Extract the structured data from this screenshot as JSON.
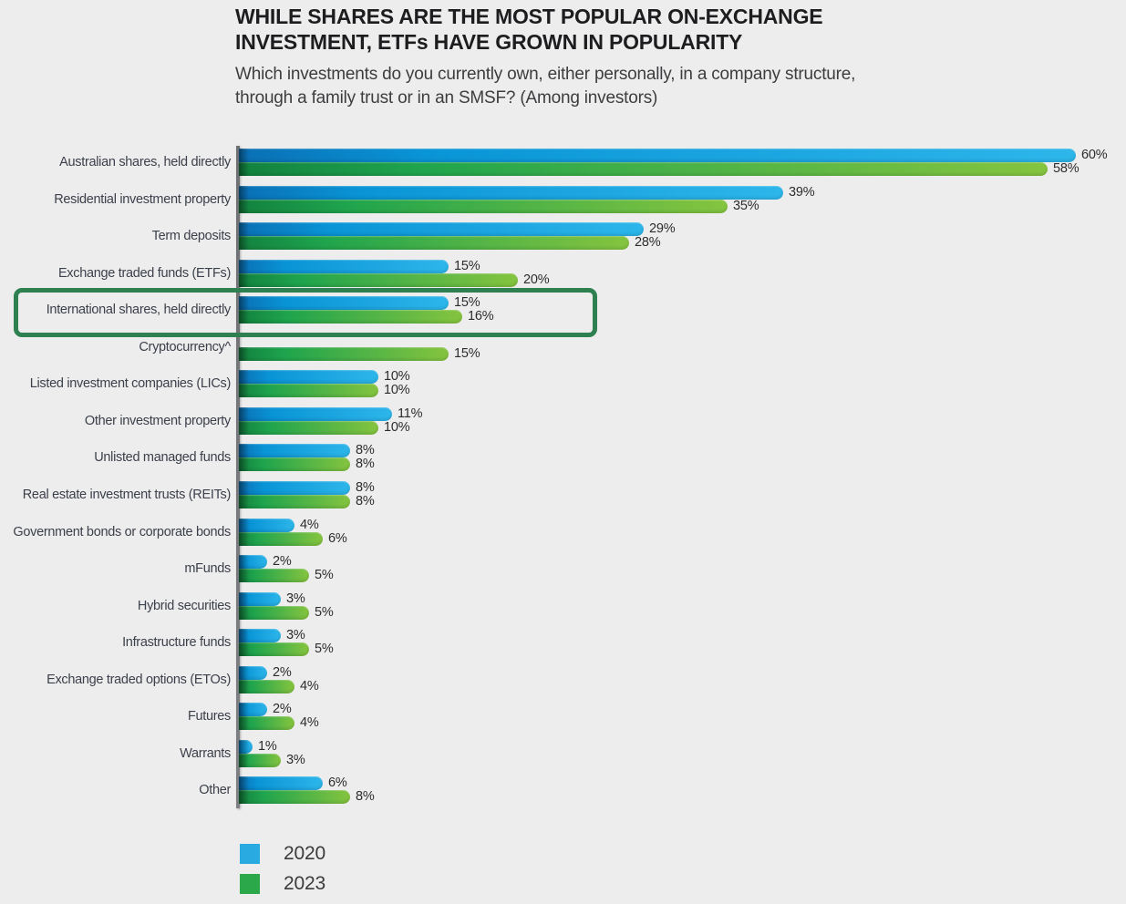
{
  "page": {
    "background": "#EDEDED"
  },
  "header": {
    "title_line1": "WHILE SHARES ARE THE MOST POPULAR ON-EXCHANGE",
    "title_line2": "INVESTMENT, ETFs HAVE GROWN IN POPULARITY",
    "subtitle_line1": "Which investments do you currently own, either personally, in a company structure,",
    "subtitle_line2": "through a family trust or in an SMSF? (Among investors)"
  },
  "chart_data": {
    "type": "bar",
    "orientation": "horizontal",
    "unit": "%",
    "value_labels": "outside-end",
    "grid": false,
    "xlim": [
      0,
      63
    ],
    "legend_position": "bottom-left",
    "categories": [
      "Australian shares, held directly",
      "Residential investment property",
      "Term deposits",
      "Exchange traded funds (ETFs)",
      "International shares, held directly",
      "Cryptocurrency^",
      "Listed investment companies (LICs)",
      "Other investment property",
      "Unlisted managed funds",
      "Real estate investment trusts (REITs)",
      "Government bonds or corporate bonds",
      "mFunds",
      "Hybrid securities",
      "Infrastructure funds",
      "Exchange traded options (ETOs)",
      "Futures",
      "Warrants",
      "Other"
    ],
    "series": [
      {
        "name": "2020",
        "color": "#29ABE2",
        "gradient": [
          "#0A6FB4",
          "#0994D6",
          "#2DB6EA"
        ],
        "values": [
          60,
          39,
          29,
          15,
          15,
          null,
          10,
          11,
          8,
          8,
          4,
          2,
          3,
          3,
          2,
          2,
          1,
          6
        ]
      },
      {
        "name": "2023",
        "color": "#2BA84A",
        "gradient": [
          "#12813F",
          "#1FA44D",
          "#85C43F"
        ],
        "values": [
          58,
          35,
          28,
          20,
          16,
          15,
          10,
          10,
          8,
          8,
          6,
          5,
          5,
          5,
          4,
          4,
          3,
          8
        ]
      }
    ],
    "highlighted_category": "International shares, held directly",
    "highlight_box_color": "#2E8050"
  },
  "legend": {
    "items": [
      {
        "label": "2020",
        "color": "#29ABE2"
      },
      {
        "label": "2023",
        "color": "#2BA84A"
      }
    ]
  }
}
